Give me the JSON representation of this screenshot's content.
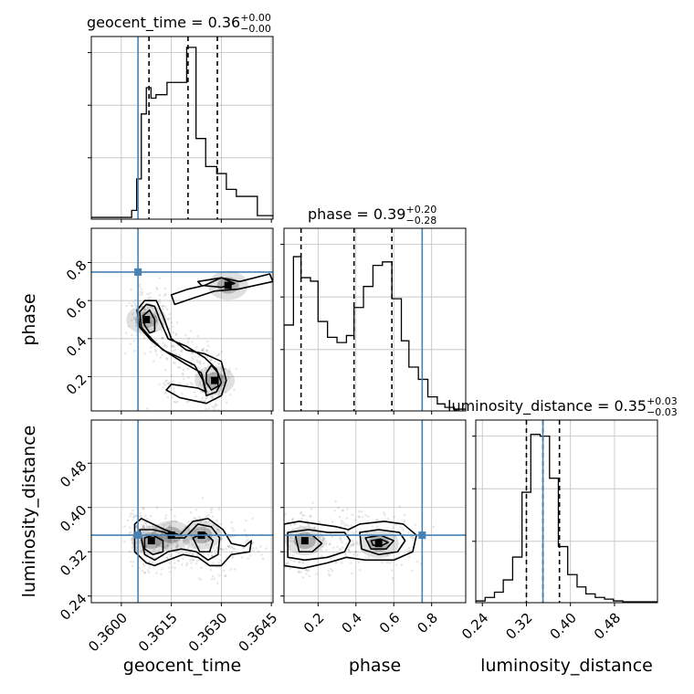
{
  "chart_data": {
    "type": "corner",
    "parameters": [
      "geocent_time",
      "phase",
      "luminosity_distance"
    ],
    "truths": {
      "geocent_time": 0.3605,
      "phase": 0.75,
      "luminosity_distance": 0.35
    },
    "colors": {
      "truth": "#4682b4",
      "hist": "#000000",
      "grid": "#c0c0c0",
      "samples": "#000000"
    },
    "grid": true,
    "axes": {
      "geocent_time": {
        "label": "geocent_time",
        "range": [
          0.3591,
          0.36455
        ],
        "ticks": [
          0.36,
          0.3615,
          0.363,
          0.3645
        ],
        "tick_labels": [
          "0.3600",
          "0.3615",
          "0.3630",
          "0.3645"
        ]
      },
      "phase": {
        "label": "phase",
        "range": [
          0.02,
          0.98
        ],
        "ticks": [
          0.2,
          0.4,
          0.6,
          0.8
        ],
        "tick_labels": [
          "0.2",
          "0.4",
          "0.6",
          "0.8"
        ]
      },
      "luminosity_distance": {
        "label": "luminosity_distance",
        "range": [
          0.228,
          0.558
        ],
        "ticks": [
          0.24,
          0.32,
          0.4,
          0.48
        ],
        "tick_labels": [
          "0.24",
          "0.32",
          "0.40",
          "0.48"
        ]
      }
    },
    "marginals": [
      {
        "param": "geocent_time",
        "title_base": "geocent_time = 0.36",
        "title_sup": "+0.00",
        "title_sub": "−0.00",
        "quantiles": [
          0.36083,
          0.362,
          0.36288
        ],
        "bin_edges": [
          0.3591,
          0.36031,
          0.36046,
          0.3606,
          0.36075,
          0.36089,
          0.36104,
          0.36137,
          0.36196,
          0.36224,
          0.36253,
          0.36286,
          0.36315,
          0.36345,
          0.36408,
          0.36455
        ],
        "counts": [
          0.01,
          0.05,
          0.23,
          0.6,
          0.75,
          0.69,
          0.71,
          0.78,
          0.98,
          0.46,
          0.3,
          0.26,
          0.17,
          0.13,
          0.02
        ]
      },
      {
        "param": "phase",
        "title_base": "phase = 0.39",
        "title_sup": "+0.20",
        "title_sub": "−0.28",
        "quantiles": [
          0.11,
          0.39,
          0.59
        ],
        "bin_edges": [
          0.02,
          0.07,
          0.11,
          0.16,
          0.2,
          0.25,
          0.3,
          0.35,
          0.39,
          0.44,
          0.49,
          0.54,
          0.59,
          0.64,
          0.68,
          0.73,
          0.78,
          0.83,
          0.87,
          0.92,
          0.98
        ],
        "counts": [
          0.49,
          0.88,
          0.76,
          0.74,
          0.51,
          0.42,
          0.39,
          0.43,
          0.59,
          0.71,
          0.83,
          0.85,
          0.64,
          0.4,
          0.25,
          0.18,
          0.08,
          0.04,
          0.02,
          0.01
        ]
      },
      {
        "param": "luminosity_distance",
        "title_base": "luminosity_distance = 0.35",
        "title_sup": "+0.03",
        "title_sub": "−0.03",
        "quantiles": [
          0.32,
          0.35,
          0.38
        ],
        "bin_edges": [
          0.228,
          0.245,
          0.262,
          0.278,
          0.295,
          0.312,
          0.328,
          0.345,
          0.362,
          0.378,
          0.395,
          0.412,
          0.428,
          0.445,
          0.462,
          0.478,
          0.495,
          0.558
        ],
        "counts": [
          0.01,
          0.03,
          0.06,
          0.13,
          0.26,
          0.63,
          0.96,
          0.95,
          0.71,
          0.32,
          0.16,
          0.09,
          0.05,
          0.03,
          0.02,
          0.01,
          0.005
        ]
      }
    ],
    "pairs": [
      {
        "x": "geocent_time",
        "y": "phase",
        "density_peaks": [
          [
            0.36075,
            0.5
          ],
          [
            0.3628,
            0.18
          ],
          [
            0.3632,
            0.68
          ]
        ],
        "contours": [
          [
            [
              0.36047,
              0.55
            ],
            [
              0.3607,
              0.6
            ],
            [
              0.36105,
              0.6
            ],
            [
              0.36125,
              0.52
            ],
            [
              0.3615,
              0.4
            ],
            [
              0.36195,
              0.34
            ],
            [
              0.3625,
              0.32
            ],
            [
              0.363,
              0.28
            ],
            [
              0.36315,
              0.18
            ],
            [
              0.363,
              0.1
            ],
            [
              0.36255,
              0.06
            ],
            [
              0.36175,
              0.09
            ],
            [
              0.36135,
              0.13
            ],
            [
              0.3615,
              0.16
            ],
            [
              0.3623,
              0.14
            ],
            [
              0.36255,
              0.12
            ],
            [
              0.3624,
              0.22
            ],
            [
              0.3619,
              0.27
            ],
            [
              0.36135,
              0.33
            ],
            [
              0.3609,
              0.39
            ],
            [
              0.36055,
              0.46
            ],
            [
              0.36047,
              0.55
            ]
          ],
          [
            [
              0.36055,
              0.54
            ],
            [
              0.36075,
              0.58
            ],
            [
              0.361,
              0.57
            ],
            [
              0.36115,
              0.5
            ],
            [
              0.3614,
              0.4
            ],
            [
              0.36195,
              0.36
            ],
            [
              0.3625,
              0.3
            ],
            [
              0.36285,
              0.24
            ],
            [
              0.363,
              0.17
            ],
            [
              0.36285,
              0.12
            ],
            [
              0.36255,
              0.1
            ],
            [
              0.36245,
              0.18
            ],
            [
              0.3622,
              0.26
            ],
            [
              0.36175,
              0.3
            ],
            [
              0.36125,
              0.34
            ],
            [
              0.3609,
              0.4
            ],
            [
              0.3606,
              0.46
            ],
            [
              0.36055,
              0.54
            ]
          ],
          [
            [
              0.36065,
              0.52
            ],
            [
              0.36085,
              0.55
            ],
            [
              0.361,
              0.5
            ],
            [
              0.361,
              0.44
            ],
            [
              0.36085,
              0.43
            ],
            [
              0.3607,
              0.47
            ],
            [
              0.36065,
              0.52
            ]
          ],
          [
            [
              0.36255,
              0.22
            ],
            [
              0.3627,
              0.26
            ],
            [
              0.3629,
              0.22
            ],
            [
              0.3629,
              0.15
            ],
            [
              0.3627,
              0.13
            ],
            [
              0.36255,
              0.17
            ],
            [
              0.36255,
              0.22
            ]
          ],
          [
            [
              0.3615,
              0.63
            ],
            [
              0.362,
              0.66
            ],
            [
              0.3625,
              0.68
            ],
            [
              0.363,
              0.72
            ],
            [
              0.36355,
              0.7
            ],
            [
              0.36445,
              0.74
            ],
            [
              0.36455,
              0.7
            ],
            [
              0.3635,
              0.66
            ],
            [
              0.3628,
              0.65
            ],
            [
              0.3621,
              0.61
            ],
            [
              0.3616,
              0.58
            ],
            [
              0.3615,
              0.63
            ]
          ],
          [
            [
              0.3623,
              0.7
            ],
            [
              0.363,
              0.72
            ],
            [
              0.3634,
              0.69
            ],
            [
              0.363,
              0.67
            ],
            [
              0.3624,
              0.68
            ],
            [
              0.3623,
              0.7
            ]
          ]
        ]
      },
      {
        "x": "geocent_time",
        "y": "luminosity_distance",
        "density_peaks": [
          [
            0.3609,
            0.34
          ],
          [
            0.3615,
            0.35
          ],
          [
            0.3624,
            0.35
          ]
        ],
        "contours": [
          [
            [
              0.3604,
              0.37
            ],
            [
              0.3606,
              0.38
            ],
            [
              0.36095,
              0.37
            ],
            [
              0.3613,
              0.36
            ],
            [
              0.36175,
              0.35
            ],
            [
              0.36215,
              0.375
            ],
            [
              0.3626,
              0.38
            ],
            [
              0.36305,
              0.36
            ],
            [
              0.3633,
              0.335
            ],
            [
              0.3637,
              0.33
            ],
            [
              0.3639,
              0.34
            ],
            [
              0.36385,
              0.32
            ],
            [
              0.3633,
              0.315
            ],
            [
              0.363,
              0.295
            ],
            [
              0.36265,
              0.295
            ],
            [
              0.3623,
              0.31
            ],
            [
              0.36185,
              0.315
            ],
            [
              0.3614,
              0.305
            ],
            [
              0.361,
              0.295
            ],
            [
              0.36075,
              0.3
            ],
            [
              0.3604,
              0.32
            ],
            [
              0.3604,
              0.37
            ]
          ],
          [
            [
              0.36055,
              0.36
            ],
            [
              0.36095,
              0.36
            ],
            [
              0.3613,
              0.355
            ],
            [
              0.3616,
              0.345
            ],
            [
              0.3619,
              0.345
            ],
            [
              0.3623,
              0.37
            ],
            [
              0.3627,
              0.365
            ],
            [
              0.36295,
              0.345
            ],
            [
              0.3629,
              0.315
            ],
            [
              0.3626,
              0.305
            ],
            [
              0.36225,
              0.32
            ],
            [
              0.3618,
              0.325
            ],
            [
              0.3614,
              0.32
            ],
            [
              0.361,
              0.305
            ],
            [
              0.3607,
              0.315
            ],
            [
              0.36055,
              0.36
            ]
          ],
          [
            [
              0.3607,
              0.345
            ],
            [
              0.36095,
              0.35
            ],
            [
              0.36125,
              0.34
            ],
            [
              0.36125,
              0.32
            ],
            [
              0.36095,
              0.315
            ],
            [
              0.3607,
              0.325
            ],
            [
              0.3607,
              0.345
            ]
          ],
          [
            [
              0.36215,
              0.345
            ],
            [
              0.3625,
              0.355
            ],
            [
              0.36275,
              0.34
            ],
            [
              0.36265,
              0.32
            ],
            [
              0.36235,
              0.32
            ],
            [
              0.36215,
              0.345
            ]
          ]
        ]
      },
      {
        "x": "phase",
        "y": "luminosity_distance",
        "density_peaks": [
          [
            0.13,
            0.34
          ],
          [
            0.52,
            0.335
          ]
        ],
        "contours": [
          [
            [
              0.02,
              0.37
            ],
            [
              0.1,
              0.375
            ],
            [
              0.2,
              0.37
            ],
            [
              0.3,
              0.365
            ],
            [
              0.36,
              0.36
            ],
            [
              0.42,
              0.37
            ],
            [
              0.55,
              0.375
            ],
            [
              0.65,
              0.37
            ],
            [
              0.72,
              0.35
            ],
            [
              0.7,
              0.32
            ],
            [
              0.6,
              0.305
            ],
            [
              0.45,
              0.305
            ],
            [
              0.35,
              0.31
            ],
            [
              0.25,
              0.3
            ],
            [
              0.12,
              0.29
            ],
            [
              0.02,
              0.295
            ],
            [
              0.02,
              0.37
            ]
          ],
          [
            [
              0.04,
              0.355
            ],
            [
              0.15,
              0.36
            ],
            [
              0.25,
              0.355
            ],
            [
              0.34,
              0.355
            ],
            [
              0.37,
              0.34
            ],
            [
              0.34,
              0.32
            ],
            [
              0.25,
              0.31
            ],
            [
              0.13,
              0.305
            ],
            [
              0.04,
              0.31
            ],
            [
              0.04,
              0.355
            ]
          ],
          [
            [
              0.42,
              0.355
            ],
            [
              0.52,
              0.36
            ],
            [
              0.63,
              0.355
            ],
            [
              0.66,
              0.34
            ],
            [
              0.62,
              0.32
            ],
            [
              0.52,
              0.315
            ],
            [
              0.43,
              0.325
            ],
            [
              0.42,
              0.355
            ]
          ],
          [
            [
              0.08,
              0.35
            ],
            [
              0.17,
              0.35
            ],
            [
              0.22,
              0.335
            ],
            [
              0.17,
              0.32
            ],
            [
              0.1,
              0.32
            ],
            [
              0.08,
              0.35
            ]
          ],
          [
            [
              0.45,
              0.345
            ],
            [
              0.53,
              0.35
            ],
            [
              0.6,
              0.34
            ],
            [
              0.56,
              0.325
            ],
            [
              0.48,
              0.325
            ],
            [
              0.45,
              0.345
            ]
          ],
          [
            [
              0.48,
              0.34
            ],
            [
              0.53,
              0.343
            ],
            [
              0.57,
              0.337
            ],
            [
              0.53,
              0.33
            ],
            [
              0.49,
              0.332
            ],
            [
              0.48,
              0.34
            ]
          ]
        ]
      }
    ]
  }
}
